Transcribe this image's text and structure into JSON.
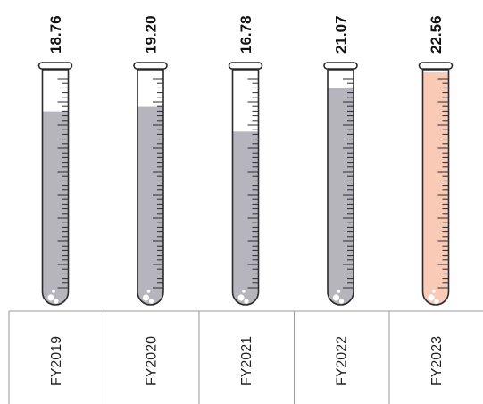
{
  "chart_data": {
    "type": "bar",
    "title": "",
    "xlabel": "",
    "ylabel": "",
    "categories": [
      "FY2019",
      "FY2020",
      "FY2021",
      "FY2022",
      "FY2023"
    ],
    "values": [
      18.76,
      19.2,
      16.78,
      21.07,
      22.56
    ],
    "value_labels": [
      "18.76",
      "19.20",
      "16.78",
      "21.07",
      "22.56"
    ],
    "ylim": [
      0,
      25
    ],
    "grid": false,
    "legend": "none",
    "colors": {
      "fill_default": "#b6b5be",
      "fill_highlight": "#f9cbb7",
      "tube_outline": "#2b2b2b",
      "axis_line": "#9a9a9a",
      "bubble": "#ffffff"
    },
    "highlight_index": 4,
    "icon": "test-tube-icon"
  }
}
